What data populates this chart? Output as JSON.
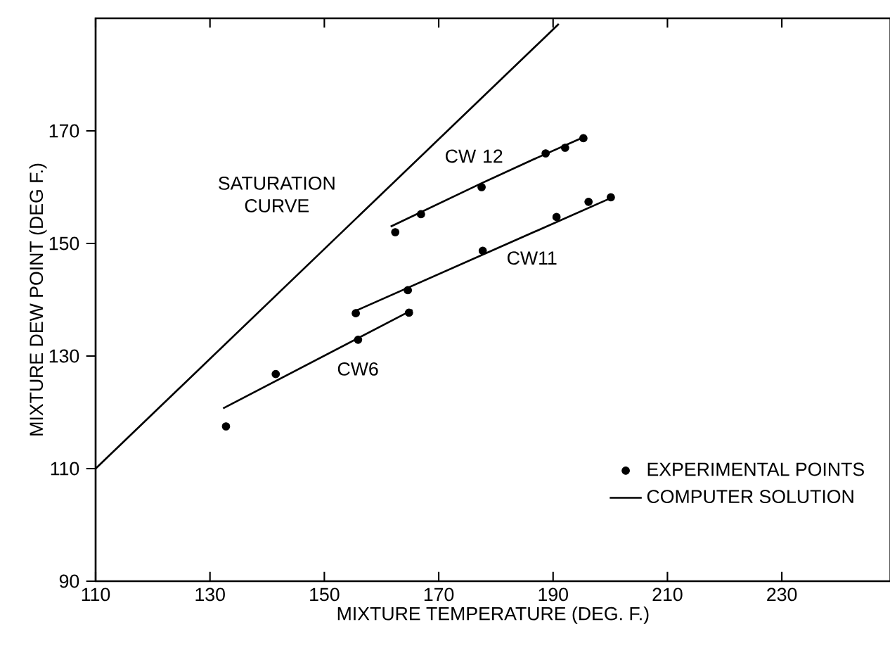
{
  "chart_data": {
    "type": "line",
    "xlabel": "MIXTURE TEMPERATURE (DEG. F.)",
    "ylabel": "MIXTURE DEW POINT (DEG F.)",
    "xlim": [
      110,
      249
    ],
    "ylim": [
      90,
      190
    ],
    "xticks": [
      110,
      130,
      150,
      170,
      190,
      210,
      230
    ],
    "yticks": [
      90,
      110,
      130,
      150,
      170
    ],
    "legend": "bottom right",
    "line_style": "solid",
    "series": [
      {
        "name": "EXPERIMENTAL POINTS",
        "type": "scatter",
        "marker": "circle",
        "color": "#000000",
        "x": [
          132.8,
          141.5,
          155.9,
          164.8
        ],
        "values": [
          117.5,
          126.8,
          132.9,
          137.7
        ]
      },
      {
        "type": "scatter",
        "marker": "circle",
        "color": "#000000",
        "x": [
          155.5,
          164.6,
          177.7,
          190.6,
          196.2,
          200.1
        ],
        "values": [
          137.6,
          141.7,
          148.7,
          154.7,
          157.4,
          158.2
        ]
      },
      {
        "type": "scatter",
        "marker": "circle",
        "color": "#000000",
        "x": [
          162.4,
          166.9,
          177.5,
          188.7,
          192.1,
          195.3
        ],
        "values": [
          152.0,
          155.2,
          160.0,
          166.0,
          167.0,
          168.7
        ]
      },
      {
        "name": "COMPUTER SOLUTION",
        "marker": "none",
        "color": "#000000",
        "x": [
          132.3,
          165.4
        ],
        "values": [
          120.7,
          138.2
        ]
      },
      {
        "marker": "none",
        "color": "#000000",
        "x": [
          155.2,
          200.4
        ],
        "values": [
          137.9,
          158.2
        ]
      },
      {
        "marker": "none",
        "color": "#000000",
        "x": [
          161.6,
          177.5,
          186.5,
          195.4
        ],
        "values": [
          153.0,
          160.7,
          164.9,
          168.9
        ]
      },
      {
        "marker": "none",
        "color": "#000000",
        "x": [
          110,
          191
        ],
        "values": [
          110,
          189
        ]
      }
    ],
    "annotations": [
      "CW 12",
      "CW11",
      "CW6",
      "SATURATION CURVE"
    ]
  }
}
